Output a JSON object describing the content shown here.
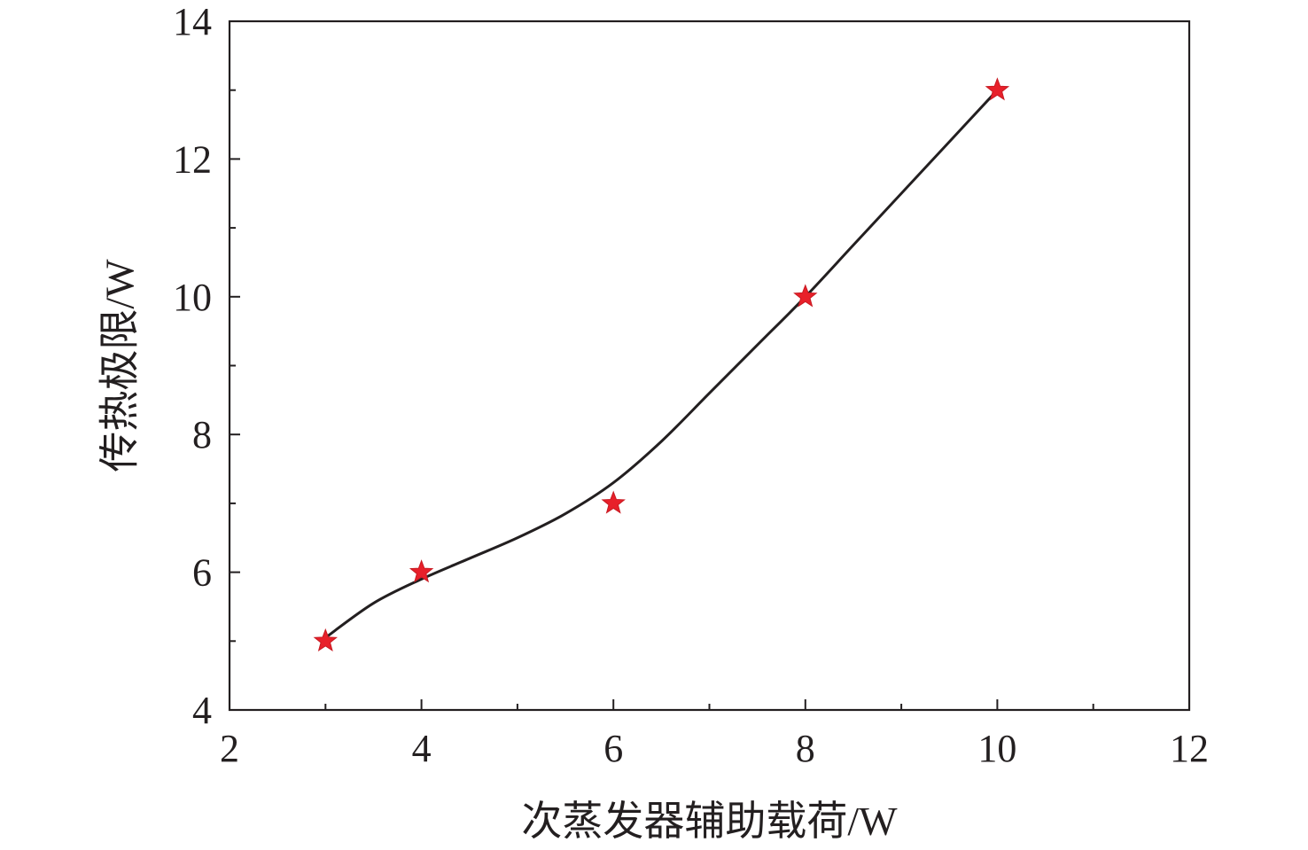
{
  "chart_data": {
    "type": "scatter",
    "title": "",
    "xlabel": "次蒸发器辅助载荷/W",
    "ylabel": "传热极限/W",
    "xlim": [
      2,
      12
    ],
    "ylim": [
      4,
      14
    ],
    "x_ticks": [
      2,
      4,
      6,
      8,
      10,
      12
    ],
    "y_ticks": [
      4,
      6,
      8,
      10,
      12,
      14
    ],
    "x_minor_step": 1,
    "y_minor_step": 1,
    "grid": false,
    "legend": "none",
    "series": [
      {
        "marker": "star",
        "color": "#e8202a",
        "x": [
          3,
          4,
          6,
          8,
          10
        ],
        "y": [
          5,
          6,
          7,
          10,
          13
        ]
      }
    ],
    "fit_curve": {
      "style": "smooth",
      "color": "#231f20",
      "x": [
        3,
        3.5,
        4,
        4.5,
        5,
        5.5,
        6,
        6.5,
        7,
        7.5,
        8,
        8.5,
        9,
        9.5,
        10
      ],
      "y": [
        5.05,
        5.55,
        5.9,
        6.2,
        6.5,
        6.85,
        7.3,
        7.9,
        8.6,
        9.3,
        10.0,
        10.75,
        11.5,
        12.25,
        13.0
      ]
    }
  }
}
